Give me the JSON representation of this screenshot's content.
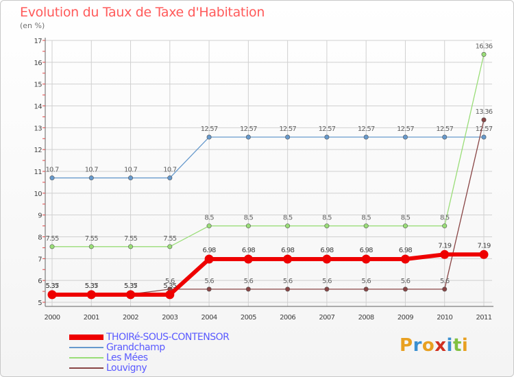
{
  "title": "Evolution du Taux de Taxe d'Habitation",
  "subtitle": "(en %)",
  "brand": {
    "letters": [
      "P",
      "r",
      "o",
      "x",
      "i",
      "t",
      "i"
    ],
    "colors": [
      "#e8a020",
      "#3a8fd0",
      "#e8a020",
      "#d03020",
      "#3a8fd0",
      "#80c040",
      "#e8a020"
    ]
  },
  "colors": {
    "THOIRe-SOUS-CONTENSOR": "#ee0000",
    "Grandchamp": "#6699cc",
    "Les Mees": "#99dd77",
    "Louvigny": "#884444",
    "grid": "#d0d0d0",
    "axis": "#606060",
    "title": "#ff5a5a",
    "legend_text": "#5a5aff"
  },
  "chart_data": {
    "type": "line",
    "title": "Evolution du Taux de Taxe d'Habitation",
    "ylabel": "(en %)",
    "xlabel": "",
    "ylim": [
      5,
      17
    ],
    "yticks": [
      "5",
      "6",
      "7",
      "8",
      "9",
      "10",
      "11",
      "12",
      "13",
      "14",
      "15",
      "16",
      "17"
    ],
    "categories": [
      "2000",
      "2001",
      "2002",
      "2003",
      "2004",
      "2005",
      "2006",
      "2007",
      "2008",
      "2009",
      "2010",
      "2011"
    ],
    "series": [
      {
        "name": "Grandchamp",
        "values": [
          10.7,
          10.7,
          10.7,
          10.7,
          12.57,
          12.57,
          12.57,
          12.57,
          12.57,
          12.57,
          12.57,
          12.57
        ],
        "labels": [
          "10.7",
          "10.7",
          "10.7",
          "10.7",
          "12.57",
          "12.57",
          "12.57",
          "12.57",
          "12.57",
          "12.57",
          "12.57",
          "12.57"
        ]
      },
      {
        "name": "Les Mées",
        "values": [
          7.55,
          7.55,
          7.55,
          7.55,
          8.5,
          8.5,
          8.5,
          8.5,
          8.5,
          8.5,
          8.5,
          16.36
        ],
        "labels": [
          "7.55",
          "7.55",
          "7.55",
          "7.55",
          "8.5",
          "8.5",
          "8.5",
          "8.5",
          "8.5",
          "8.5",
          "8.5",
          "16.36"
        ]
      },
      {
        "name": "Louvigny",
        "values": [
          5.37,
          5.37,
          5.37,
          5.6,
          5.6,
          5.6,
          5.6,
          5.6,
          5.6,
          5.6,
          5.6,
          13.36
        ],
        "labels": [
          "5.37",
          "5.37",
          "5.37",
          "5.6",
          "5.6",
          "5.6",
          "5.6",
          "5.6",
          "5.6",
          "5.6",
          "5.6",
          "13.36"
        ]
      },
      {
        "name": "THOIRé-SOUS-CONTENSOR",
        "values": [
          5.35,
          5.35,
          5.35,
          5.35,
          6.98,
          6.98,
          6.98,
          6.98,
          6.98,
          6.98,
          7.19,
          7.19
        ],
        "labels": [
          "5.35",
          "5.35",
          "5.35",
          "5.35",
          "6.98",
          "6.98",
          "6.98",
          "6.98",
          "6.98",
          "6.98",
          "7.19",
          "7.19"
        ]
      }
    ],
    "legend": [
      "THOIRé-SOUS-CONTENSOR",
      "Grandchamp",
      "Les Mées",
      "Louvigny"
    ],
    "legend_position": "bottom-left",
    "grid": true
  }
}
